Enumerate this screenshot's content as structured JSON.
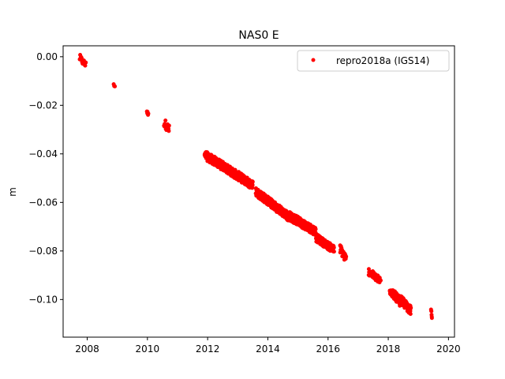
{
  "chart_data": {
    "type": "scatter",
    "title": "NAS0 E",
    "xlabel": "",
    "ylabel": "m",
    "xlim": [
      2007.2,
      2020.2
    ],
    "ylim": [
      -0.1155,
      0.0045
    ],
    "xticks": [
      2008,
      2010,
      2012,
      2014,
      2016,
      2018,
      2020
    ],
    "xtick_labels": [
      "2008",
      "2010",
      "2012",
      "2014",
      "2016",
      "2018",
      "2020"
    ],
    "yticks": [
      0.0,
      -0.02,
      -0.04,
      -0.06,
      -0.08,
      -0.1
    ],
    "ytick_labels": [
      "0.00",
      "−0.02",
      "−0.04",
      "−0.06",
      "−0.08",
      "−0.10"
    ],
    "grid": false,
    "legend": {
      "position": "top-right"
    },
    "series": [
      {
        "name": "repro2018a (IGS14)",
        "color": "#ff0000",
        "marker": "point",
        "segments": [
          {
            "x_start": 2007.75,
            "x_end": 2007.95,
            "y_start": -0.0005,
            "y_end": -0.0035,
            "n": 14,
            "spread": 0.0015
          },
          {
            "x_start": 2008.88,
            "x_end": 2008.92,
            "y_start": -0.0112,
            "y_end": -0.0122,
            "n": 4,
            "spread": 0.0008
          },
          {
            "x_start": 2009.98,
            "x_end": 2010.03,
            "y_start": -0.0225,
            "y_end": -0.024,
            "n": 5,
            "spread": 0.0008
          },
          {
            "x_start": 2010.55,
            "x_end": 2010.72,
            "y_start": -0.027,
            "y_end": -0.03,
            "n": 18,
            "spread": 0.0018
          },
          {
            "x_start": 2011.9,
            "x_end": 2012.5,
            "y_start": -0.0405,
            "y_end": -0.045,
            "n": 130,
            "spread": 0.0018
          },
          {
            "x_start": 2012.5,
            "x_end": 2013.5,
            "y_start": -0.045,
            "y_end": -0.053,
            "n": 200,
            "spread": 0.0018
          },
          {
            "x_start": 2013.6,
            "x_end": 2014.7,
            "y_start": -0.0555,
            "y_end": -0.066,
            "n": 220,
            "spread": 0.0018
          },
          {
            "x_start": 2014.7,
            "x_end": 2015.6,
            "y_start": -0.0655,
            "y_end": -0.072,
            "n": 190,
            "spread": 0.0018
          },
          {
            "x_start": 2015.6,
            "x_end": 2016.2,
            "y_start": -0.0745,
            "y_end": -0.0795,
            "n": 120,
            "spread": 0.0016
          },
          {
            "x_start": 2016.4,
            "x_end": 2016.6,
            "y_start": -0.079,
            "y_end": -0.0835,
            "n": 35,
            "spread": 0.0018
          },
          {
            "x_start": 2017.35,
            "x_end": 2017.75,
            "y_start": -0.0885,
            "y_end": -0.0925,
            "n": 60,
            "spread": 0.0015
          },
          {
            "x_start": 2018.05,
            "x_end": 2018.4,
            "y_start": -0.096,
            "y_end": -0.101,
            "n": 70,
            "spread": 0.0018
          },
          {
            "x_start": 2018.4,
            "x_end": 2018.75,
            "y_start": -0.1,
            "y_end": -0.1045,
            "n": 80,
            "spread": 0.0018
          },
          {
            "x_start": 2019.42,
            "x_end": 2019.45,
            "y_start": -0.103,
            "y_end": -0.109,
            "n": 6,
            "spread": 0.0015
          }
        ]
      }
    ]
  }
}
